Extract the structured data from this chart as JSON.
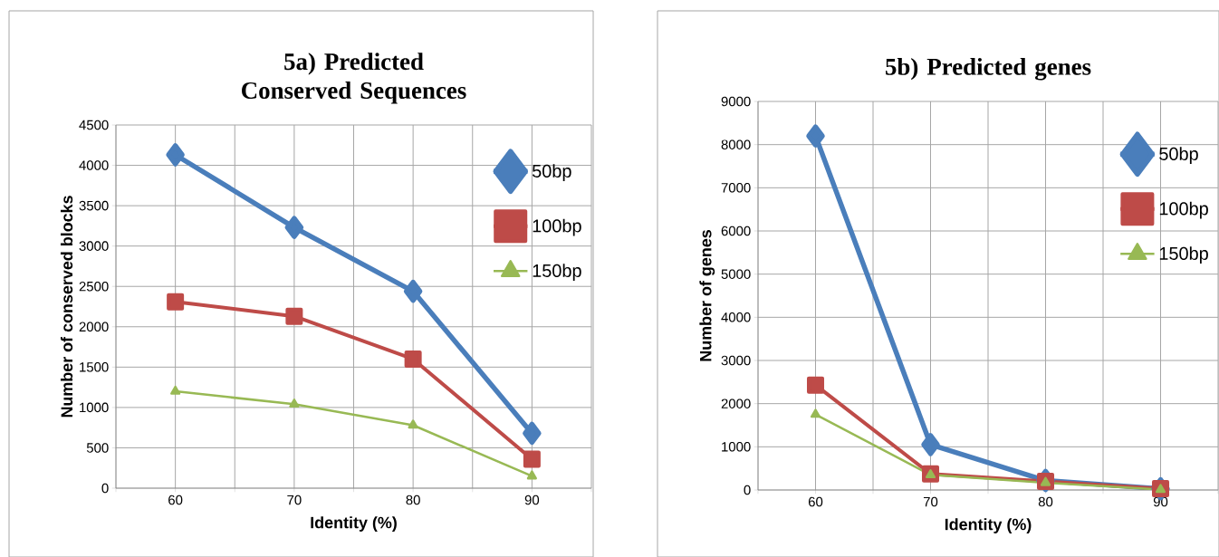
{
  "chart_data": [
    {
      "type": "line",
      "title": "5a) Predicted Conserved Sequences",
      "xlabel": "Identity (%)",
      "ylabel": "Number of conserved blocks",
      "x": [
        60,
        70,
        80,
        90
      ],
      "xlim": [
        55,
        95
      ],
      "xticks": [
        {
          "value": 55,
          "label": null
        },
        60,
        {
          "value": 65,
          "label": null
        },
        70,
        {
          "value": 75,
          "label": null
        },
        80,
        {
          "value": 85,
          "label": null
        },
        90,
        {
          "value": 95,
          "label": null
        }
      ],
      "ylim": [
        0,
        4500
      ],
      "yticks": [
        0,
        500,
        1000,
        1500,
        2000,
        2500,
        3000,
        3500,
        4000,
        4500
      ],
      "grid": true,
      "legend": "right",
      "series": [
        {
          "name": "50bp",
          "color": "#4a7ebb",
          "marker": "diamond",
          "values": [
            4130,
            3230,
            2440,
            680
          ]
        },
        {
          "name": "100bp",
          "color": "#be4b48",
          "marker": "square",
          "values": [
            2310,
            2130,
            1600,
            360
          ]
        },
        {
          "name": "150bp",
          "color": "#98b954",
          "marker": "triangle",
          "values": [
            1200,
            1040,
            780,
            150
          ]
        }
      ]
    },
    {
      "type": "line",
      "title": "5b) Predicted genes",
      "xlabel": "Identity (%)",
      "ylabel": "Number of genes",
      "x": [
        60,
        70,
        80,
        90
      ],
      "xlim": [
        55,
        95
      ],
      "xticks": [
        {
          "value": 55,
          "label": null
        },
        60,
        {
          "value": 65,
          "label": null
        },
        70,
        {
          "value": 75,
          "label": null
        },
        80,
        {
          "value": 85,
          "label": null
        },
        90,
        {
          "value": 95,
          "label": null
        }
      ],
      "ylim": [
        0,
        9000
      ],
      "yticks": [
        0,
        1000,
        2000,
        3000,
        4000,
        5000,
        6000,
        7000,
        8000,
        9000
      ],
      "grid": true,
      "legend": "right",
      "series": [
        {
          "name": "50bp",
          "color": "#4a7ebb",
          "marker": "diamond",
          "values": [
            8200,
            1050,
            220,
            30
          ]
        },
        {
          "name": "100bp",
          "color": "#be4b48",
          "marker": "square",
          "values": [
            2430,
            370,
            200,
            30
          ]
        },
        {
          "name": "150bp",
          "color": "#98b954",
          "marker": "triangle",
          "values": [
            1750,
            350,
            170,
            10
          ]
        }
      ]
    }
  ]
}
